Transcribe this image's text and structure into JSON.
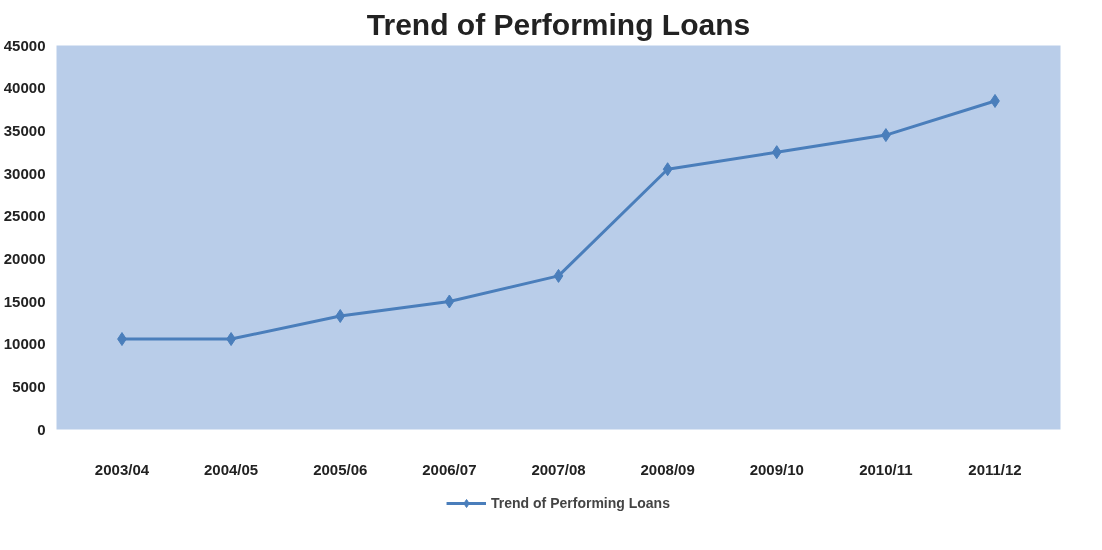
{
  "chart_data": {
    "type": "line",
    "title": "Trend of Performing Loans",
    "categories": [
      "2003/04",
      "2004/05",
      "2005/06",
      "2006/07",
      "2007/08",
      "2008/09",
      "2009/10",
      "2010/11",
      "2011/12"
    ],
    "series": [
      {
        "name": "Trend of Performing Loans",
        "color": "#4a7ebb",
        "values": [
          10600,
          10600,
          13300,
          15000,
          18000,
          30500,
          32500,
          34500,
          38500
        ]
      }
    ],
    "ylim": [
      0,
      45000
    ],
    "yticks": [
      0,
      5000,
      10000,
      15000,
      20000,
      25000,
      30000,
      35000,
      40000,
      45000
    ],
    "grid": false,
    "legend": "bottom",
    "marker": "diamond",
    "line_style": "solid"
  }
}
